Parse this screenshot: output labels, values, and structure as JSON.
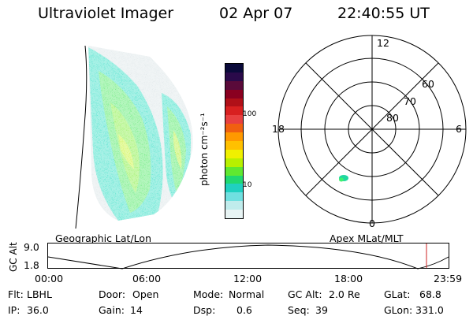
{
  "header": {
    "instrument": "Ultraviolet Imager",
    "date": "02 Apr 07",
    "time": "22:40:55 UT"
  },
  "colorbar": {
    "label": "photon cm⁻²s⁻¹",
    "ticks": [
      "100",
      "10"
    ],
    "colors": [
      "#0a0a3a",
      "#2a0a4a",
      "#5a0a3a",
      "#8a0020",
      "#b01018",
      "#d82020",
      "#e84040",
      "#f06010",
      "#ff9900",
      "#ffc000",
      "#f0f000",
      "#b8f000",
      "#60e830",
      "#20d870",
      "#20d0c0",
      "#70e0e0",
      "#c0ecec",
      "#e8f4f4"
    ]
  },
  "polar_plot": {
    "mlt_labels": [
      "12",
      "18",
      "6",
      "0"
    ],
    "lat_labels": [
      "60",
      "70",
      "80"
    ]
  },
  "labels": {
    "geographic": "Geographic Lat/Lon",
    "apex": "Apex MLat/MLT"
  },
  "altitude_strip": {
    "axis_label": "GC Alt",
    "y_ticks": [
      "9.0",
      "1.8"
    ],
    "time_ticks": [
      "00:00",
      "06:00",
      "12:00",
      "18:00",
      "23:59"
    ],
    "marker_color": "#cc2222"
  },
  "status": {
    "flt_label": "Flt:",
    "flt_value": "LBHL",
    "ip_label": "IP:",
    "ip_value": "36.0",
    "door_label": "Door:",
    "door_value": "Open",
    "gain_label": "Gain:",
    "gain_value": "14",
    "mode_label": "Mode:",
    "mode_value": "Normal",
    "dsp_label": "Dsp:",
    "dsp_value": "0.6",
    "gcalt_label": "GC Alt:",
    "gcalt_value": "2.0 Re",
    "seq_label": "Seq:",
    "seq_value": "39",
    "glat_label": "GLat:",
    "glat_value": "68.8",
    "glon_label": "GLon:",
    "glon_value": "331.0"
  }
}
